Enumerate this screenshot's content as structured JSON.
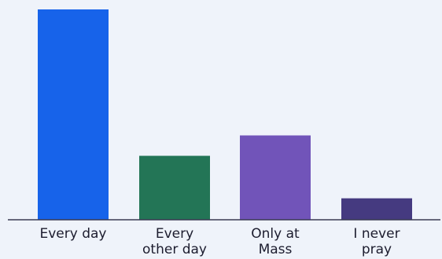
{
  "chart_data": {
    "type": "bar",
    "title": "",
    "xlabel": "",
    "ylabel": "",
    "categories": [
      [
        "Every day"
      ],
      [
        "Every",
        "other day"
      ],
      [
        "Only at",
        "Mass"
      ],
      [
        "I never",
        "pray"
      ]
    ],
    "values": [
      100,
      30.4,
      40.1,
      10.2
    ],
    "ylim": [
      0,
      100
    ],
    "grid": false,
    "legend": "none",
    "colors": [
      "#1763ea",
      "#237556",
      "#7154b9",
      "#453a80"
    ],
    "axis_color": "#3a3a52",
    "label_color": "#1c1c2e"
  }
}
